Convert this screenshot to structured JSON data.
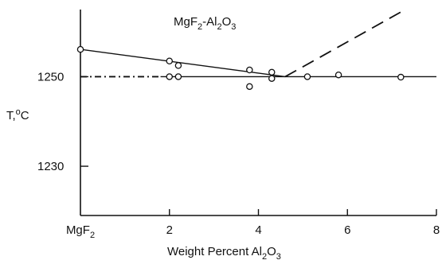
{
  "chart_data": {
    "type": "scatter",
    "title": {
      "text": "MgF",
      "sub1": "2",
      "mid": "-Al",
      "sub2": "2",
      "mid2": "O",
      "sub3": "3"
    },
    "xlabel": {
      "text": "Weight Percent Al",
      "sub1": "2",
      "mid": "O",
      "sub2": "3"
    },
    "ylabel": {
      "text": "T,",
      "sup": "o",
      "end": "C"
    },
    "xlim": [
      0,
      8
    ],
    "ylim": [
      1219,
      1265
    ],
    "x_ticks": [
      {
        "value": 0,
        "label": "MgF",
        "sub": "2"
      },
      {
        "value": 2,
        "label": "2"
      },
      {
        "value": 4,
        "label": "4"
      },
      {
        "value": 6,
        "label": "6"
      },
      {
        "value": 8,
        "label": "8"
      }
    ],
    "y_ticks": [
      {
        "value": 1250,
        "label": "1250"
      },
      {
        "value": 1230,
        "label": "1230"
      }
    ],
    "points": [
      {
        "x": 0.0,
        "y": 1256.1
      },
      {
        "x": 2.0,
        "y": 1253.5
      },
      {
        "x": 2.2,
        "y": 1252.5
      },
      {
        "x": 3.8,
        "y": 1251.5
      },
      {
        "x": 4.3,
        "y": 1251.0
      },
      {
        "x": 4.3,
        "y": 1249.6
      },
      {
        "x": 3.8,
        "y": 1247.8
      },
      {
        "x": 2.0,
        "y": 1250.0
      },
      {
        "x": 2.2,
        "y": 1250.0
      },
      {
        "x": 5.1,
        "y": 1250.0
      },
      {
        "x": 5.8,
        "y": 1250.4
      },
      {
        "x": 7.2,
        "y": 1249.9
      }
    ],
    "lines": [
      {
        "style": "solid",
        "points": [
          [
            0,
            1256.1
          ],
          [
            4.6,
            1250.0
          ]
        ]
      },
      {
        "style": "solid",
        "points": [
          [
            1.8,
            1250.0
          ],
          [
            8,
            1250.0
          ]
        ]
      },
      {
        "style": "dash-dot",
        "points": [
          [
            0,
            1250.0
          ],
          [
            1.8,
            1250.0
          ]
        ]
      },
      {
        "style": "dashed",
        "points": [
          [
            4.6,
            1250.0
          ],
          [
            7.3,
            1265.0
          ]
        ]
      }
    ],
    "grid": false
  }
}
